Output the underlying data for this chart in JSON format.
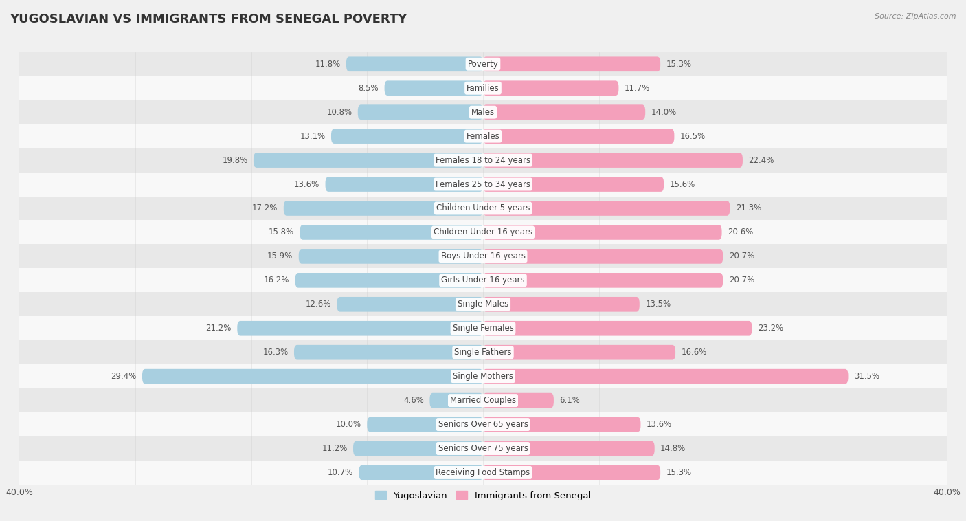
{
  "title": "YUGOSLAVIAN VS IMMIGRANTS FROM SENEGAL POVERTY",
  "source": "Source: ZipAtlas.com",
  "categories": [
    "Poverty",
    "Families",
    "Males",
    "Females",
    "Females 18 to 24 years",
    "Females 25 to 34 years",
    "Children Under 5 years",
    "Children Under 16 years",
    "Boys Under 16 years",
    "Girls Under 16 years",
    "Single Males",
    "Single Females",
    "Single Fathers",
    "Single Mothers",
    "Married Couples",
    "Seniors Over 65 years",
    "Seniors Over 75 years",
    "Receiving Food Stamps"
  ],
  "yugoslavian": [
    11.8,
    8.5,
    10.8,
    13.1,
    19.8,
    13.6,
    17.2,
    15.8,
    15.9,
    16.2,
    12.6,
    21.2,
    16.3,
    29.4,
    4.6,
    10.0,
    11.2,
    10.7
  ],
  "senegal": [
    15.3,
    11.7,
    14.0,
    16.5,
    22.4,
    15.6,
    21.3,
    20.6,
    20.7,
    20.7,
    13.5,
    23.2,
    16.6,
    31.5,
    6.1,
    13.6,
    14.8,
    15.3
  ],
  "yugo_color": "#a8cfe0",
  "senegal_color": "#f4a0bb",
  "yugo_label": "Yugoslavian",
  "senegal_label": "Immigrants from Senegal",
  "xlim": 40.0,
  "bar_height": 0.62,
  "bg_color": "#f0f0f0",
  "row_even_color": "#e8e8e8",
  "row_odd_color": "#f8f8f8",
  "label_fontsize": 8.5,
  "category_fontsize": 8.5,
  "title_fontsize": 13,
  "source_fontsize": 8
}
